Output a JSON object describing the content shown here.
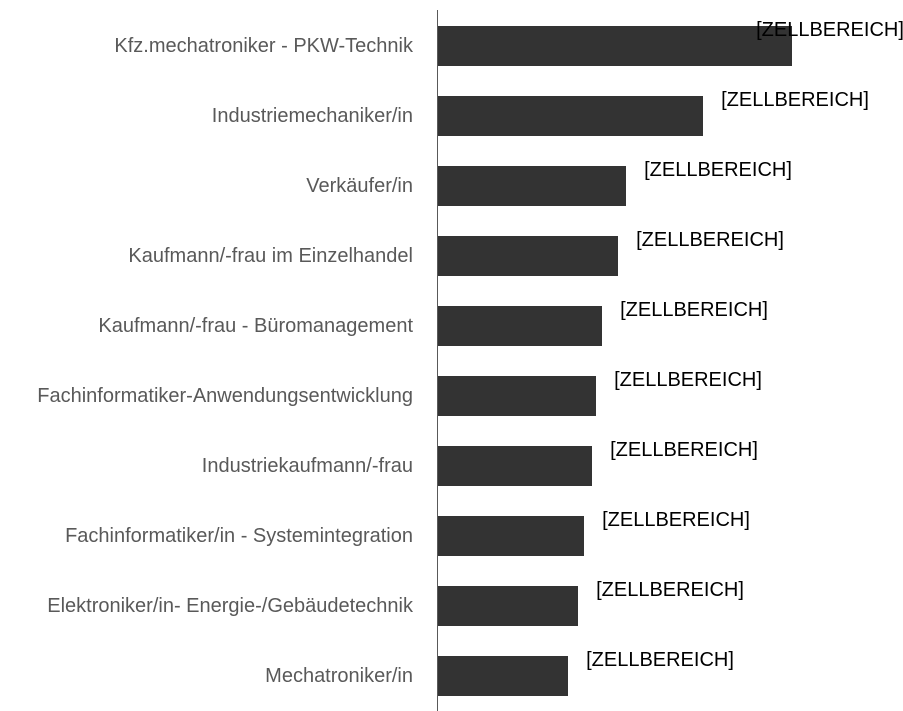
{
  "chart_data": {
    "type": "bar",
    "orientation": "horizontal",
    "color": "#333333",
    "categories": [
      "Kfz.mechatroniker - PKW-Technik",
      "Industriemechaniker/in",
      "Verkäufer/in",
      "Kaufmann/-frau im Einzelhandel",
      "Kaufmann/-frau - Büromanagement",
      "Fachinformatiker-Anwendungsentwicklung",
      "Industriekaufmann/-frau",
      "Fachinformatiker/in - Systemintegration",
      "Elektroniker/in- Energie-/Gebäudetechnik",
      "Mechatroniker/in"
    ],
    "values": [
      354,
      265,
      188,
      180,
      164,
      158,
      154,
      146,
      140,
      130
    ],
    "value_labels": [
      "[ZELLBEREICH]",
      "[ZELLBEREICH]",
      "[ZELLBEREICH]",
      "[ZELLBEREICH]",
      "[ZELLBEREICH]",
      "[ZELLBEREICH]",
      "[ZELLBEREICH]",
      "[ZELLBEREICH]",
      "[ZELLBEREICH]",
      "[ZELLBEREICH]"
    ]
  }
}
